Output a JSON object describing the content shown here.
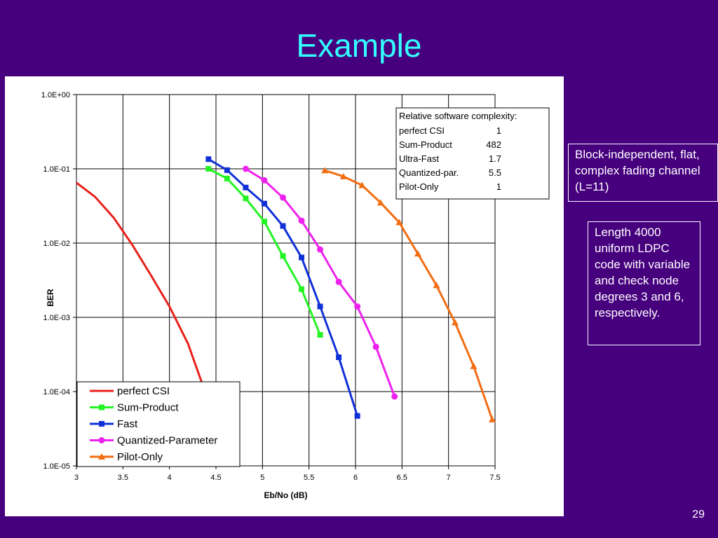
{
  "slide": {
    "title": "Example",
    "page_number": "29",
    "note_fading": "Block-independent, flat, complex fading channel (L=11)",
    "note_ldpc": "Length 4000 uniform LDPC code with variable and check node degrees 3 and 6, respectively."
  },
  "chart_data": {
    "type": "line",
    "xlabel": "Eb/No (dB)",
    "ylabel": "BER",
    "xlim": [
      3,
      7.5
    ],
    "ylim": [
      1e-05,
      1
    ],
    "yscale": "log",
    "x_ticks": [
      3,
      3.5,
      4,
      4.5,
      5,
      5.5,
      6,
      6.5,
      7,
      7.5
    ],
    "x_tick_labels": [
      "3",
      "3.5",
      "4",
      "4.5",
      "5",
      "5.5",
      "6",
      "6.5",
      "7",
      "7.5"
    ],
    "y_ticks": [
      1,
      0.1,
      0.01,
      0.001,
      0.0001,
      1e-05
    ],
    "y_tick_labels": [
      "1.0E+00",
      "1.0E-01",
      "1.0E-02",
      "1.0E-03",
      "1.0E-04",
      "1.0E-05"
    ],
    "grid": true,
    "legend_position": "bottom-left",
    "series": [
      {
        "name": "perfect CSI",
        "color": "#e8201a",
        "marker": "none",
        "points": [
          [
            3.0,
            0.065
          ],
          [
            3.2,
            0.042
          ],
          [
            3.4,
            0.022
          ],
          [
            3.6,
            0.0095
          ],
          [
            3.8,
            0.0037
          ],
          [
            4.0,
            0.0014
          ],
          [
            4.2,
            0.00044
          ],
          [
            4.35,
            0.00013
          ]
        ]
      },
      {
        "name": "Sum-Product",
        "color": "#23f423",
        "marker": "square",
        "points": [
          [
            4.42,
            0.1
          ],
          [
            4.62,
            0.074
          ],
          [
            4.82,
            0.04
          ],
          [
            5.02,
            0.0195
          ],
          [
            5.22,
            0.0067
          ],
          [
            5.42,
            0.0024
          ],
          [
            5.62,
            0.00058
          ]
        ]
      },
      {
        "name": "Fast",
        "color": "#1030d8",
        "marker": "square",
        "points": [
          [
            4.42,
            0.135
          ],
          [
            4.62,
            0.096
          ],
          [
            4.82,
            0.056
          ],
          [
            5.02,
            0.034
          ],
          [
            5.22,
            0.017
          ],
          [
            5.42,
            0.0064
          ],
          [
            5.62,
            0.0014
          ],
          [
            5.82,
            0.00029
          ],
          [
            6.02,
            4.7e-05
          ]
        ]
      },
      {
        "name": "Quantized-Parameter",
        "color": "#ee22ee",
        "marker": "circle",
        "points": [
          [
            4.82,
            0.1
          ],
          [
            5.02,
            0.07
          ],
          [
            5.22,
            0.041
          ],
          [
            5.42,
            0.02
          ],
          [
            5.62,
            0.0082
          ],
          [
            5.82,
            0.003
          ],
          [
            6.02,
            0.0014
          ],
          [
            6.22,
            0.0004
          ],
          [
            6.42,
            8.6e-05
          ]
        ]
      },
      {
        "name": "Pilot-Only",
        "color": "#f26d12",
        "marker": "triangle",
        "points": [
          [
            5.67,
            0.095
          ],
          [
            5.87,
            0.079
          ],
          [
            6.07,
            0.06
          ],
          [
            6.27,
            0.035
          ],
          [
            6.47,
            0.019
          ],
          [
            6.67,
            0.0072
          ],
          [
            6.87,
            0.0027
          ],
          [
            7.07,
            0.00085
          ],
          [
            7.27,
            0.00022
          ],
          [
            7.47,
            4.2e-05
          ]
        ]
      }
    ],
    "annotation": {
      "title": "Relative software complexity:",
      "rows": [
        {
          "label": "perfect CSI",
          "value": "1"
        },
        {
          "label": "Sum-Product",
          "value": "482"
        },
        {
          "label": "Ultra-Fast",
          "value": "1.7"
        },
        {
          "label": "Quantized-par.",
          "value": "5.5"
        },
        {
          "label": "Pilot-Only",
          "value": "1"
        }
      ]
    }
  }
}
